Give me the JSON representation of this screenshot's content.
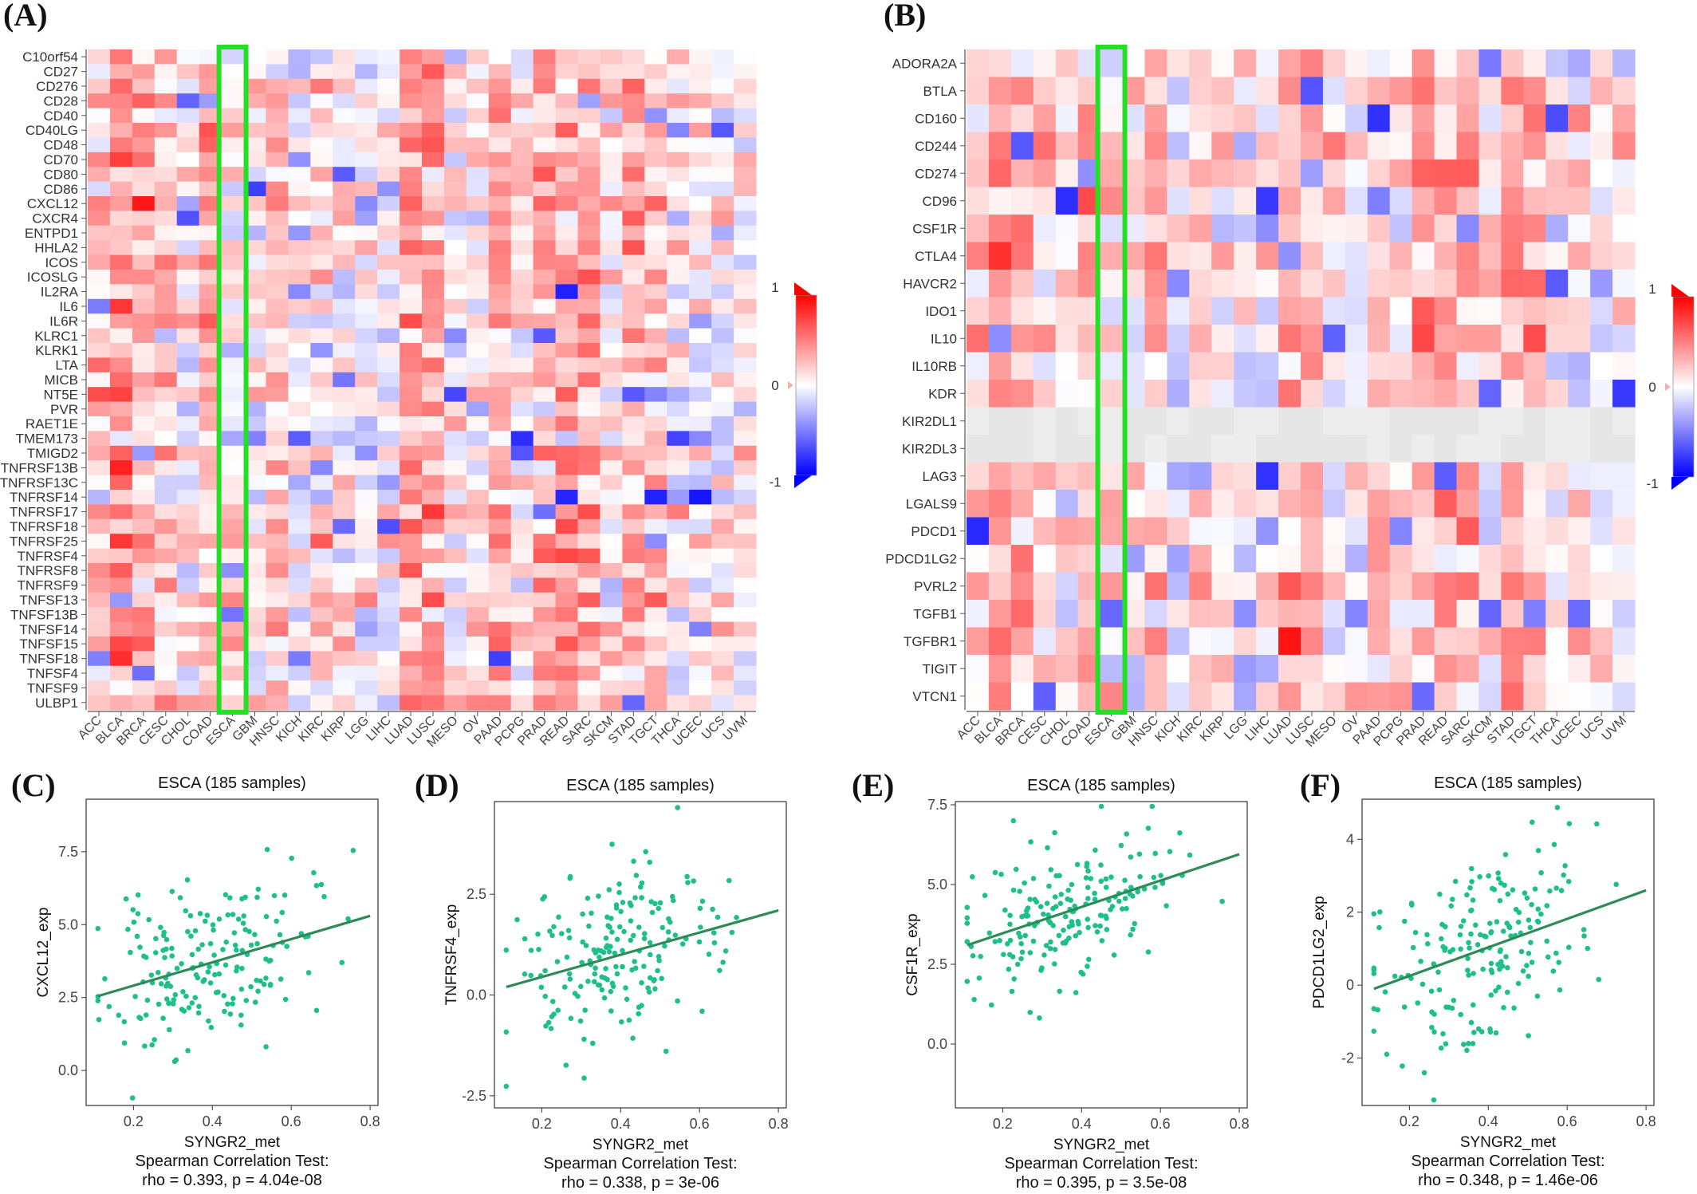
{
  "colors": {
    "positive": "#ff0000",
    "negative": "#0000ff",
    "neutral": "#ffffff",
    "highlight_box": "#22e022",
    "scatter_point": "#1dbf8a",
    "fit_line": "#2e8b57"
  },
  "chart_data": [
    {
      "id": "A",
      "panel_label": "(A)",
      "type": "heatmap",
      "title": "",
      "x_categories": [
        "ACC",
        "BLCA",
        "BRCA",
        "CESC",
        "CHOL",
        "COAD",
        "ESCA",
        "GBM",
        "HNSC",
        "KICH",
        "KIRC",
        "KIRP",
        "LGG",
        "LIHC",
        "LUAD",
        "LUSC",
        "MESO",
        "OV",
        "PAAD",
        "PCPG",
        "PRAD",
        "READ",
        "SARC",
        "SKCM",
        "STAD",
        "TGCT",
        "THCA",
        "UCEC",
        "UCS",
        "UVM"
      ],
      "y_categories": [
        "C10orf54",
        "CD27",
        "CD276",
        "CD28",
        "CD40",
        "CD40LG",
        "CD48",
        "CD70",
        "CD80",
        "CD86",
        "CXCL12",
        "CXCR4",
        "ENTPD1",
        "HHLA2",
        "ICOS",
        "ICOSLG",
        "IL2RA",
        "IL6",
        "IL6R",
        "KLRC1",
        "KLRK1",
        "LTA",
        "MICB",
        "NT5E",
        "PVR",
        "RAET1E",
        "TMEM173",
        "TMIGD2",
        "TNFRSF13B",
        "TNFRSF13C",
        "TNFRSF14",
        "TNFRSF17",
        "TNFRSF18",
        "TNFRSF25",
        "TNFRSF4",
        "TNFRSF8",
        "TNFRSF9",
        "TNFSF13",
        "TNFSF13B",
        "TNFSF14",
        "TNFSF15",
        "TNFSF18",
        "TNFSF4",
        "TNFSF9",
        "ULBP1"
      ],
      "colorbar": {
        "min": -1,
        "max": 1,
        "ticks": [
          "1",
          "0",
          "-1"
        ]
      },
      "highlight_column": "ESCA"
    },
    {
      "id": "B",
      "panel_label": "(B)",
      "type": "heatmap",
      "title": "",
      "x_categories": [
        "ACC",
        "BLCA",
        "BRCA",
        "CESC",
        "CHOL",
        "COAD",
        "ESCA",
        "GBM",
        "HNSC",
        "KICH",
        "KIRC",
        "KIRP",
        "LGG",
        "LIHC",
        "LUAD",
        "LUSC",
        "MESO",
        "OV",
        "PAAD",
        "PCPG",
        "PRAD",
        "READ",
        "SARC",
        "SKCM",
        "STAD",
        "TGCT",
        "THCA",
        "UCEC",
        "UCS",
        "UVM"
      ],
      "y_categories": [
        "ADORA2A",
        "BTLA",
        "CD160",
        "CD244",
        "CD274",
        "CD96",
        "CSF1R",
        "CTLA4",
        "HAVCR2",
        "IDO1",
        "IL10",
        "IL10RB",
        "KDR",
        "KIR2DL1",
        "KIR2DL3",
        "LAG3",
        "LGALS9",
        "PDCD1",
        "PDCD1LG2",
        "PVRL2",
        "TGFB1",
        "TGFBR1",
        "TIGIT",
        "VTCN1"
      ],
      "colorbar": {
        "min": -1,
        "max": 1,
        "ticks": [
          "1",
          "0",
          "-1"
        ]
      },
      "highlight_column": "ESCA"
    },
    {
      "id": "C",
      "panel_label": "(C)",
      "type": "scatter",
      "title": "ESCA (185 samples)",
      "xlabel": "SYNGR2_met",
      "ylabel": "CXCL12_exp",
      "xlim": [
        0.08,
        0.82
      ],
      "ylim": [
        -1.2,
        9.3
      ],
      "xticks": [
        0.2,
        0.4,
        0.6,
        0.8
      ],
      "yticks": [
        0.0,
        2.5,
        5.0,
        7.5
      ],
      "fit_line": {
        "x": [
          0.11,
          0.8
        ],
        "y": [
          2.55,
          5.3
        ]
      },
      "caption_line1": "Spearman Correlation Test:",
      "caption_line2": "rho = 0.393, p = 4.04e-08",
      "sample_count": 185,
      "seed": 11,
      "slope": 3.99,
      "intercept": 2.11,
      "noise": 1.35
    },
    {
      "id": "D",
      "panel_label": "(D)",
      "type": "scatter",
      "title": "ESCA (185 samples)",
      "xlabel": "SYNGR2_met",
      "ylabel": "TNFRSF4_exp",
      "xlim": [
        0.08,
        0.82
      ],
      "ylim": [
        -2.8,
        4.8
      ],
      "xticks": [
        0.2,
        0.4,
        0.6,
        0.8
      ],
      "yticks": [
        -2.5,
        0.0,
        2.5
      ],
      "fit_line": {
        "x": [
          0.11,
          0.8
        ],
        "y": [
          0.2,
          2.1
        ]
      },
      "caption_line1": "Spearman Correlation Test:",
      "caption_line2": "rho = 0.338, p = 3e-06",
      "sample_count": 185,
      "seed": 23,
      "slope": 2.75,
      "intercept": -0.1,
      "noise": 1.1
    },
    {
      "id": "E",
      "panel_label": "(E)",
      "type": "scatter",
      "title": "ESCA (185 samples)",
      "xlabel": "SYNGR2_met",
      "ylabel": "CSF1R_exp",
      "xlim": [
        0.08,
        0.82
      ],
      "ylim": [
        -2.0,
        7.6
      ],
      "xticks": [
        0.2,
        0.4,
        0.6,
        0.8
      ],
      "yticks": [
        0.0,
        2.5,
        5.0,
        7.5
      ],
      "fit_line": {
        "x": [
          0.11,
          0.8
        ],
        "y": [
          3.1,
          5.95
        ]
      },
      "caption_line1": "Spearman Correlation Test:",
      "caption_line2": "rho = 0.395, p = 3.5e-08",
      "sample_count": 185,
      "seed": 37,
      "slope": 4.13,
      "intercept": 2.65,
      "noise": 1.1
    },
    {
      "id": "F",
      "panel_label": "(F)",
      "type": "scatter",
      "title": "ESCA (185 samples)",
      "xlabel": "SYNGR2_met",
      "ylabel": "PDCD1LG2_exp",
      "xlim": [
        0.08,
        0.82
      ],
      "ylim": [
        -3.3,
        5.1
      ],
      "xticks": [
        0.2,
        0.4,
        0.6,
        0.8
      ],
      "yticks": [
        -2,
        0,
        2,
        4
      ],
      "fit_line": {
        "x": [
          0.11,
          0.8
        ],
        "y": [
          -0.1,
          2.6
        ]
      },
      "caption_line1": "Spearman Correlation Test:",
      "caption_line2": "rho = 0.348, p = 1.46e-06",
      "sample_count": 185,
      "seed": 53,
      "slope": 3.91,
      "intercept": -0.53,
      "noise": 1.3
    }
  ]
}
